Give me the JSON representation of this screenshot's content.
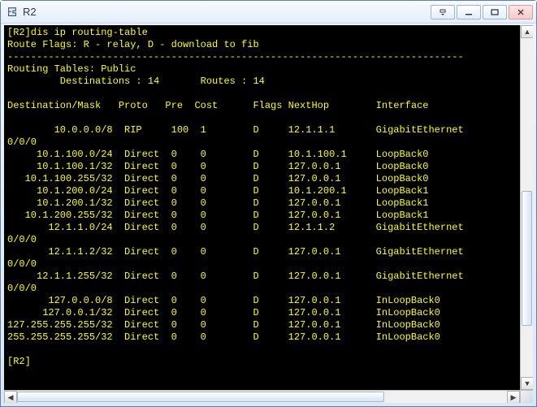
{
  "window": {
    "title": "R2"
  },
  "terminal": {
    "prompt_open": "[R2]",
    "command": "dis ip routing-table",
    "flags_legend": "Route Flags: R - relay, D - download to fib",
    "hr": "------------------------------------------------------------------------------",
    "header_line": "Routing Tables: Public",
    "summary_dest_label": "Destinations :",
    "summary_dest_value": "14",
    "summary_routes_label": "Routes :",
    "summary_routes_value": "14",
    "col": {
      "dest": "Destination/Mask",
      "proto": "Proto",
      "pre": "Pre",
      "cost": "Cost",
      "flags": "Flags",
      "nexthop": "NextHop",
      "interface": "Interface"
    },
    "rows": [
      {
        "dest": "10.0.0.0/8",
        "proto": "RIP",
        "pre": "100",
        "cost": "1",
        "flags": "D",
        "nexthop": "12.1.1.1",
        "interface": "GigabitEthernet",
        "cont": "0/0/0"
      },
      {
        "dest": "10.1.100.0/24",
        "proto": "Direct",
        "pre": "0",
        "cost": "0",
        "flags": "D",
        "nexthop": "10.1.100.1",
        "interface": "LoopBack0"
      },
      {
        "dest": "10.1.100.1/32",
        "proto": "Direct",
        "pre": "0",
        "cost": "0",
        "flags": "D",
        "nexthop": "127.0.0.1",
        "interface": "LoopBack0"
      },
      {
        "dest": "10.1.100.255/32",
        "proto": "Direct",
        "pre": "0",
        "cost": "0",
        "flags": "D",
        "nexthop": "127.0.0.1",
        "interface": "LoopBack0"
      },
      {
        "dest": "10.1.200.0/24",
        "proto": "Direct",
        "pre": "0",
        "cost": "0",
        "flags": "D",
        "nexthop": "10.1.200.1",
        "interface": "LoopBack1"
      },
      {
        "dest": "10.1.200.1/32",
        "proto": "Direct",
        "pre": "0",
        "cost": "0",
        "flags": "D",
        "nexthop": "127.0.0.1",
        "interface": "LoopBack1"
      },
      {
        "dest": "10.1.200.255/32",
        "proto": "Direct",
        "pre": "0",
        "cost": "0",
        "flags": "D",
        "nexthop": "127.0.0.1",
        "interface": "LoopBack1"
      },
      {
        "dest": "12.1.1.0/24",
        "proto": "Direct",
        "pre": "0",
        "cost": "0",
        "flags": "D",
        "nexthop": "12.1.1.2",
        "interface": "GigabitEthernet",
        "cont": "0/0/0"
      },
      {
        "dest": "12.1.1.2/32",
        "proto": "Direct",
        "pre": "0",
        "cost": "0",
        "flags": "D",
        "nexthop": "127.0.0.1",
        "interface": "GigabitEthernet",
        "cont": "0/0/0"
      },
      {
        "dest": "12.1.1.255/32",
        "proto": "Direct",
        "pre": "0",
        "cost": "0",
        "flags": "D",
        "nexthop": "127.0.0.1",
        "interface": "GigabitEthernet",
        "cont": "0/0/0"
      },
      {
        "dest": "127.0.0.0/8",
        "proto": "Direct",
        "pre": "0",
        "cost": "0",
        "flags": "D",
        "nexthop": "127.0.0.1",
        "interface": "InLoopBack0"
      },
      {
        "dest": "127.0.0.1/32",
        "proto": "Direct",
        "pre": "0",
        "cost": "0",
        "flags": "D",
        "nexthop": "127.0.0.1",
        "interface": "InLoopBack0"
      },
      {
        "dest": "127.255.255.255/32",
        "proto": "Direct",
        "pre": "0",
        "cost": "0",
        "flags": "D",
        "nexthop": "127.0.0.1",
        "interface": "InLoopBack0"
      },
      {
        "dest": "255.255.255.255/32",
        "proto": "Direct",
        "pre": "0",
        "cost": "0",
        "flags": "D",
        "nexthop": "127.0.0.1",
        "interface": "InLoopBack0"
      }
    ],
    "final_prompt": "[R2]"
  },
  "scroll": {
    "vthumb_top_pct": 45,
    "vthumb_height_pct": 40,
    "hthumb_left_pct": 0,
    "hthumb_width_pct": 75
  },
  "colors": {
    "terminal_bg": "#000000",
    "terminal_fg": "#ffff00"
  }
}
